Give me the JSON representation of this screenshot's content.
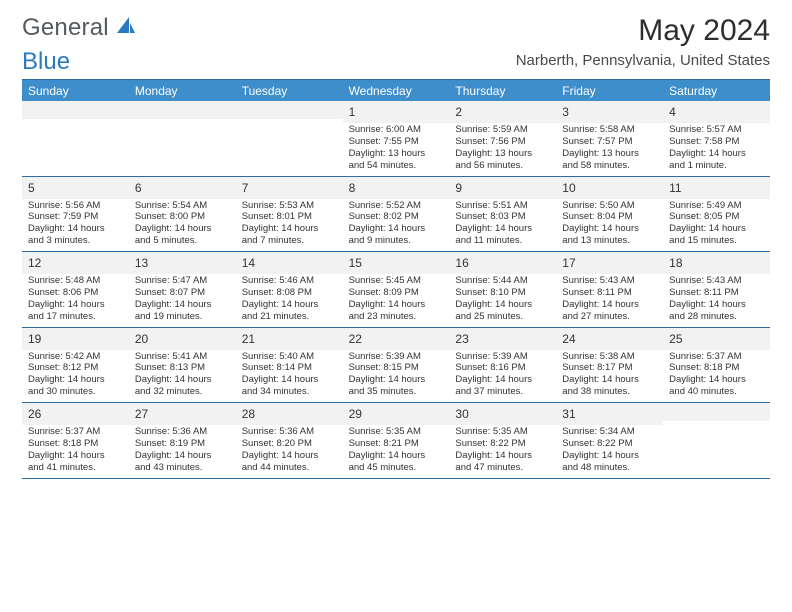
{
  "logo": {
    "text1": "General",
    "text2": "Blue",
    "icon_color": "#2b7abf"
  },
  "month_title": "May 2024",
  "location": "Narberth, Pennsylvania, United States",
  "days_of_week": [
    "Sunday",
    "Monday",
    "Tuesday",
    "Wednesday",
    "Thursday",
    "Friday",
    "Saturday"
  ],
  "colors": {
    "header_bg": "#3f8ecc",
    "border": "#2e6da4",
    "daynum_bg": "#f2f2f2",
    "text": "#333333"
  },
  "weeks": [
    [
      {
        "n": "",
        "sr": "",
        "ss": "",
        "d1": "",
        "d2": ""
      },
      {
        "n": "",
        "sr": "",
        "ss": "",
        "d1": "",
        "d2": ""
      },
      {
        "n": "",
        "sr": "",
        "ss": "",
        "d1": "",
        "d2": ""
      },
      {
        "n": "1",
        "sr": "Sunrise: 6:00 AM",
        "ss": "Sunset: 7:55 PM",
        "d1": "Daylight: 13 hours",
        "d2": "and 54 minutes."
      },
      {
        "n": "2",
        "sr": "Sunrise: 5:59 AM",
        "ss": "Sunset: 7:56 PM",
        "d1": "Daylight: 13 hours",
        "d2": "and 56 minutes."
      },
      {
        "n": "3",
        "sr": "Sunrise: 5:58 AM",
        "ss": "Sunset: 7:57 PM",
        "d1": "Daylight: 13 hours",
        "d2": "and 58 minutes."
      },
      {
        "n": "4",
        "sr": "Sunrise: 5:57 AM",
        "ss": "Sunset: 7:58 PM",
        "d1": "Daylight: 14 hours",
        "d2": "and 1 minute."
      }
    ],
    [
      {
        "n": "5",
        "sr": "Sunrise: 5:56 AM",
        "ss": "Sunset: 7:59 PM",
        "d1": "Daylight: 14 hours",
        "d2": "and 3 minutes."
      },
      {
        "n": "6",
        "sr": "Sunrise: 5:54 AM",
        "ss": "Sunset: 8:00 PM",
        "d1": "Daylight: 14 hours",
        "d2": "and 5 minutes."
      },
      {
        "n": "7",
        "sr": "Sunrise: 5:53 AM",
        "ss": "Sunset: 8:01 PM",
        "d1": "Daylight: 14 hours",
        "d2": "and 7 minutes."
      },
      {
        "n": "8",
        "sr": "Sunrise: 5:52 AM",
        "ss": "Sunset: 8:02 PM",
        "d1": "Daylight: 14 hours",
        "d2": "and 9 minutes."
      },
      {
        "n": "9",
        "sr": "Sunrise: 5:51 AM",
        "ss": "Sunset: 8:03 PM",
        "d1": "Daylight: 14 hours",
        "d2": "and 11 minutes."
      },
      {
        "n": "10",
        "sr": "Sunrise: 5:50 AM",
        "ss": "Sunset: 8:04 PM",
        "d1": "Daylight: 14 hours",
        "d2": "and 13 minutes."
      },
      {
        "n": "11",
        "sr": "Sunrise: 5:49 AM",
        "ss": "Sunset: 8:05 PM",
        "d1": "Daylight: 14 hours",
        "d2": "and 15 minutes."
      }
    ],
    [
      {
        "n": "12",
        "sr": "Sunrise: 5:48 AM",
        "ss": "Sunset: 8:06 PM",
        "d1": "Daylight: 14 hours",
        "d2": "and 17 minutes."
      },
      {
        "n": "13",
        "sr": "Sunrise: 5:47 AM",
        "ss": "Sunset: 8:07 PM",
        "d1": "Daylight: 14 hours",
        "d2": "and 19 minutes."
      },
      {
        "n": "14",
        "sr": "Sunrise: 5:46 AM",
        "ss": "Sunset: 8:08 PM",
        "d1": "Daylight: 14 hours",
        "d2": "and 21 minutes."
      },
      {
        "n": "15",
        "sr": "Sunrise: 5:45 AM",
        "ss": "Sunset: 8:09 PM",
        "d1": "Daylight: 14 hours",
        "d2": "and 23 minutes."
      },
      {
        "n": "16",
        "sr": "Sunrise: 5:44 AM",
        "ss": "Sunset: 8:10 PM",
        "d1": "Daylight: 14 hours",
        "d2": "and 25 minutes."
      },
      {
        "n": "17",
        "sr": "Sunrise: 5:43 AM",
        "ss": "Sunset: 8:11 PM",
        "d1": "Daylight: 14 hours",
        "d2": "and 27 minutes."
      },
      {
        "n": "18",
        "sr": "Sunrise: 5:43 AM",
        "ss": "Sunset: 8:11 PM",
        "d1": "Daylight: 14 hours",
        "d2": "and 28 minutes."
      }
    ],
    [
      {
        "n": "19",
        "sr": "Sunrise: 5:42 AM",
        "ss": "Sunset: 8:12 PM",
        "d1": "Daylight: 14 hours",
        "d2": "and 30 minutes."
      },
      {
        "n": "20",
        "sr": "Sunrise: 5:41 AM",
        "ss": "Sunset: 8:13 PM",
        "d1": "Daylight: 14 hours",
        "d2": "and 32 minutes."
      },
      {
        "n": "21",
        "sr": "Sunrise: 5:40 AM",
        "ss": "Sunset: 8:14 PM",
        "d1": "Daylight: 14 hours",
        "d2": "and 34 minutes."
      },
      {
        "n": "22",
        "sr": "Sunrise: 5:39 AM",
        "ss": "Sunset: 8:15 PM",
        "d1": "Daylight: 14 hours",
        "d2": "and 35 minutes."
      },
      {
        "n": "23",
        "sr": "Sunrise: 5:39 AM",
        "ss": "Sunset: 8:16 PM",
        "d1": "Daylight: 14 hours",
        "d2": "and 37 minutes."
      },
      {
        "n": "24",
        "sr": "Sunrise: 5:38 AM",
        "ss": "Sunset: 8:17 PM",
        "d1": "Daylight: 14 hours",
        "d2": "and 38 minutes."
      },
      {
        "n": "25",
        "sr": "Sunrise: 5:37 AM",
        "ss": "Sunset: 8:18 PM",
        "d1": "Daylight: 14 hours",
        "d2": "and 40 minutes."
      }
    ],
    [
      {
        "n": "26",
        "sr": "Sunrise: 5:37 AM",
        "ss": "Sunset: 8:18 PM",
        "d1": "Daylight: 14 hours",
        "d2": "and 41 minutes."
      },
      {
        "n": "27",
        "sr": "Sunrise: 5:36 AM",
        "ss": "Sunset: 8:19 PM",
        "d1": "Daylight: 14 hours",
        "d2": "and 43 minutes."
      },
      {
        "n": "28",
        "sr": "Sunrise: 5:36 AM",
        "ss": "Sunset: 8:20 PM",
        "d1": "Daylight: 14 hours",
        "d2": "and 44 minutes."
      },
      {
        "n": "29",
        "sr": "Sunrise: 5:35 AM",
        "ss": "Sunset: 8:21 PM",
        "d1": "Daylight: 14 hours",
        "d2": "and 45 minutes."
      },
      {
        "n": "30",
        "sr": "Sunrise: 5:35 AM",
        "ss": "Sunset: 8:22 PM",
        "d1": "Daylight: 14 hours",
        "d2": "and 47 minutes."
      },
      {
        "n": "31",
        "sr": "Sunrise: 5:34 AM",
        "ss": "Sunset: 8:22 PM",
        "d1": "Daylight: 14 hours",
        "d2": "and 48 minutes."
      },
      {
        "n": "",
        "sr": "",
        "ss": "",
        "d1": "",
        "d2": ""
      }
    ]
  ]
}
